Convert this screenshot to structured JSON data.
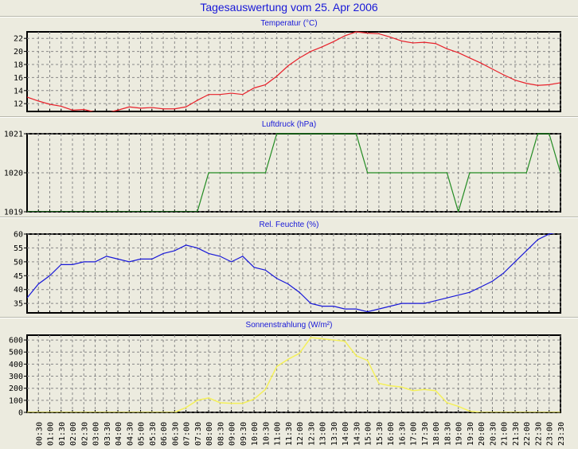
{
  "title": "Tagesauswertung vom 25. Apr 2006",
  "chart_data": [
    {
      "type": "line",
      "title": "Temperatur (°C)",
      "color": "#e8202a",
      "ylim": [
        10.8,
        23.0
      ],
      "yticks": [
        12,
        14,
        16,
        18,
        20,
        22
      ],
      "values": [
        13.0,
        12.4,
        11.9,
        11.6,
        11.0,
        11.1,
        10.7,
        10.6,
        11.0,
        11.5,
        11.3,
        11.4,
        11.2,
        11.2,
        11.5,
        12.5,
        13.4,
        13.4,
        13.6,
        13.4,
        14.4,
        14.9,
        16.2,
        17.8,
        19.0,
        20.0,
        20.7,
        21.5,
        22.4,
        23.0,
        22.8,
        22.7,
        22.2,
        21.6,
        21.3,
        21.4,
        21.2,
        20.4,
        19.8,
        19.0,
        18.2,
        17.3,
        16.4,
        15.6,
        15.1,
        14.8,
        14.9,
        15.2
      ]
    },
    {
      "type": "line",
      "title": "Luftdruck (hPa)",
      "color": "#228b22",
      "ylim": [
        1019,
        1021
      ],
      "yticks": [
        1019,
        1020,
        1021
      ],
      "values": [
        1019,
        1019,
        1019,
        1019,
        1019,
        1019,
        1019,
        1019,
        1019,
        1019,
        1019,
        1019,
        1019,
        1019,
        1019,
        1019,
        1020,
        1020,
        1020,
        1020,
        1020,
        1020,
        1021,
        1021,
        1021,
        1021,
        1021,
        1021,
        1021,
        1021,
        1020,
        1020,
        1020,
        1020,
        1020,
        1020,
        1020,
        1020,
        1019,
        1020,
        1020,
        1020,
        1020,
        1020,
        1020,
        1021,
        1021,
        1020
      ]
    },
    {
      "type": "line",
      "title": "Rel. Feuchte (%)",
      "color": "#1818d8",
      "ylim": [
        31.6,
        60
      ],
      "yticks": [
        35,
        40,
        45,
        50,
        55,
        60
      ],
      "values": [
        37,
        42,
        45,
        49,
        49,
        50,
        50,
        52,
        51,
        50,
        51,
        51,
        53,
        54,
        56,
        55,
        53,
        52,
        50,
        52,
        48,
        47,
        44,
        42,
        39,
        35,
        34,
        34,
        33,
        33,
        32,
        33,
        34,
        35,
        35,
        35,
        36,
        37,
        38,
        39,
        41,
        43,
        46,
        50,
        54,
        58,
        60,
        61
      ]
    },
    {
      "type": "line",
      "title": "Sonnenstrahlung (W/m²)",
      "color": "#f4f05a",
      "ylim": [
        0,
        640
      ],
      "yticks": [
        0,
        100,
        200,
        300,
        400,
        500,
        600
      ],
      "values": [
        0,
        0,
        0,
        0,
        0,
        0,
        0,
        0,
        0,
        0,
        0,
        0,
        0,
        0,
        40,
        100,
        120,
        80,
        75,
        75,
        110,
        190,
        380,
        440,
        490,
        620,
        610,
        600,
        590,
        470,
        430,
        240,
        220,
        210,
        180,
        190,
        180,
        80,
        50,
        10,
        0,
        0,
        0,
        0,
        0,
        0,
        0,
        0
      ]
    }
  ],
  "x_hours": [
    0,
    0.5,
    1,
    1.5,
    2,
    2.5,
    3,
    3.5,
    4,
    4.5,
    5,
    5.5,
    6,
    6.5,
    7,
    7.5,
    8,
    8.5,
    9,
    9.5,
    10,
    10.5,
    11,
    11.5,
    12,
    12.5,
    13,
    13.5,
    14,
    14.5,
    15,
    15.5,
    16,
    16.5,
    17,
    17.5,
    18,
    18.5,
    19,
    19.5,
    20,
    20.5,
    21,
    21.5,
    22,
    22.5,
    23,
    23.5
  ],
  "xtick_labels": [
    "00:30",
    "01:00",
    "01:30",
    "02:00",
    "02:30",
    "03:00",
    "03:30",
    "04:00",
    "04:30",
    "05:00",
    "05:30",
    "06:00",
    "06:30",
    "07:00",
    "07:30",
    "08:00",
    "08:30",
    "09:00",
    "09:30",
    "10:00",
    "10:30",
    "11:00",
    "11:30",
    "12:00",
    "12:30",
    "13:00",
    "13:30",
    "14:00",
    "14:30",
    "15:00",
    "15:30",
    "16:00",
    "16:30",
    "17:00",
    "17:30",
    "18:00",
    "18:30",
    "19:00",
    "19:30",
    "20:00",
    "20:30",
    "21:00",
    "21:30",
    "22:00",
    "22:30",
    "23:00",
    "23:30"
  ]
}
